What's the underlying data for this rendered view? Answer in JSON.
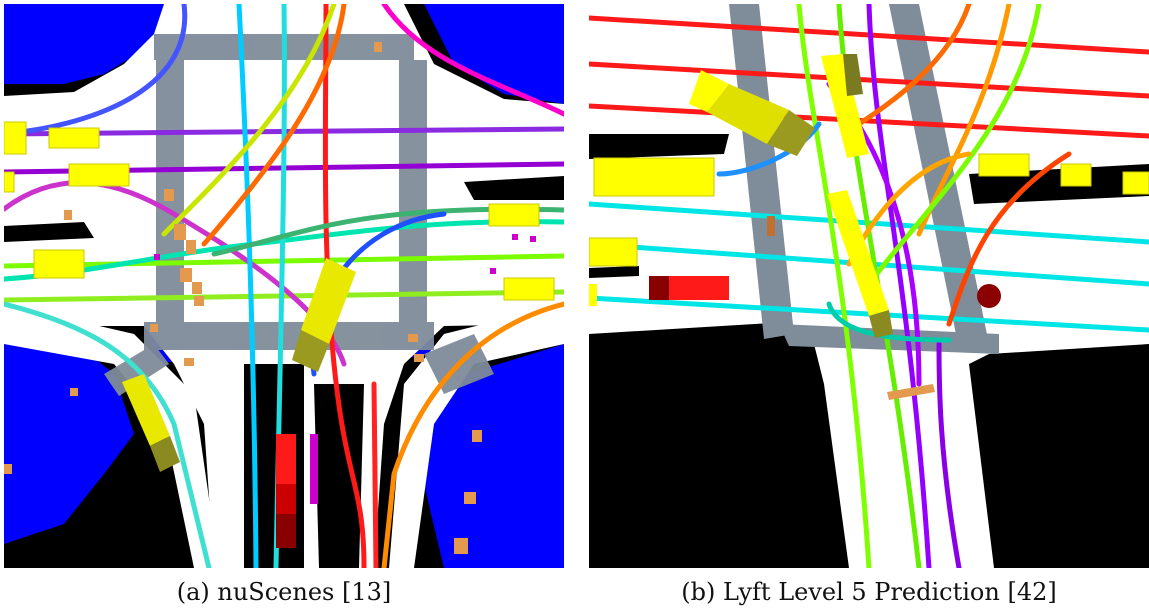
{
  "figure": {
    "panels": [
      {
        "id": "a",
        "caption": "(a) nuScenes [13]"
      },
      {
        "id": "b",
        "caption": "(b) Lyft Level 5 Prediction [42]"
      }
    ]
  },
  "colors": {
    "drivable": "#ffffff",
    "non_drivable": "#000000",
    "walkway": "#0000ff",
    "crosswalk": "#7f8c99",
    "vehicle": "#ffff00",
    "ego": "#ff0000",
    "pedestrian": "#e39a4f"
  }
}
